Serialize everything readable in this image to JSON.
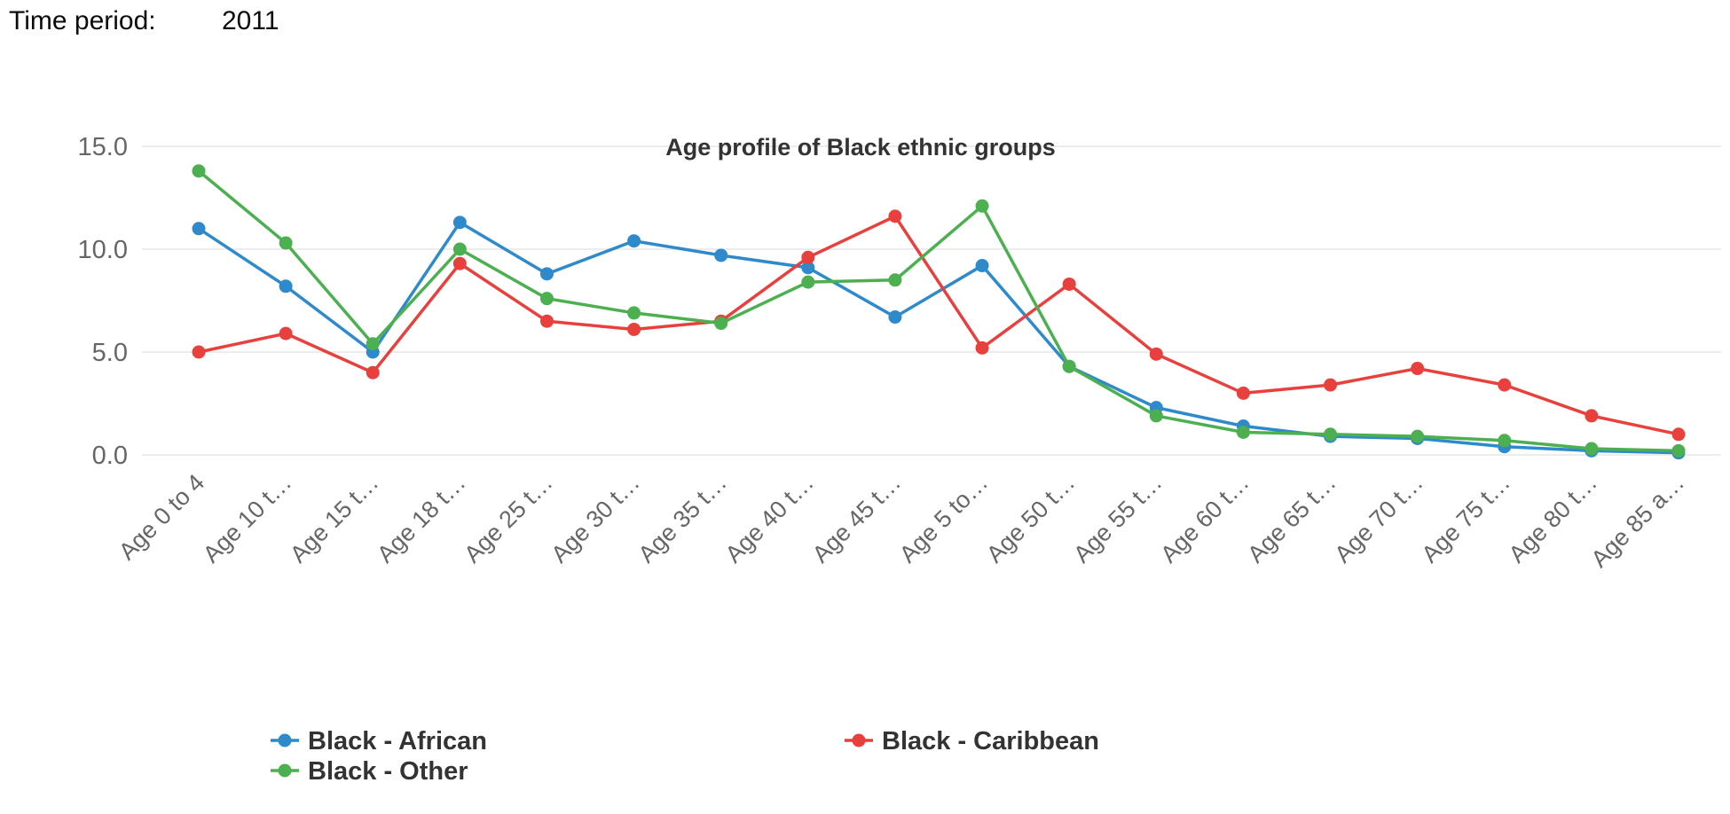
{
  "time_period": {
    "label": "Time period:",
    "value": "2011"
  },
  "colors": {
    "Black - African": "#2e8acb",
    "Black - Caribbean": "#e8413d",
    "Black - Other": "#4caf50",
    "grid": "#e6e6e6",
    "tick_text": "#666666",
    "title_text": "#333333"
  },
  "chart_data": {
    "type": "line",
    "title": "Age profile of Black ethnic groups",
    "xlabel": "",
    "ylabel": "",
    "ylim": [
      0,
      15
    ],
    "yticks": [
      "0.0",
      "5.0",
      "10.0",
      "15.0"
    ],
    "grid": "horizontal",
    "legend_position": "bottom",
    "categories": [
      "Age 0 to 4",
      "Age 10 t…",
      "Age 15 t…",
      "Age 18 t…",
      "Age 25 t…",
      "Age 30 t…",
      "Age 35 t…",
      "Age 40 t…",
      "Age 45 t…",
      "Age 5 to…",
      "Age 50 t…",
      "Age 55 t…",
      "Age 60 t…",
      "Age 65 t…",
      "Age 70 t…",
      "Age 75 t…",
      "Age 80 t…",
      "Age 85 a…"
    ],
    "series": [
      {
        "name": "Black - African",
        "color": "#2e8acb",
        "values": [
          11.0,
          8.2,
          5.0,
          11.3,
          8.8,
          10.4,
          9.7,
          9.1,
          6.7,
          9.2,
          4.3,
          2.3,
          1.4,
          0.9,
          0.8,
          0.4,
          0.2,
          0.1
        ]
      },
      {
        "name": "Black - Caribbean",
        "color": "#e8413d",
        "values": [
          5.0,
          5.9,
          4.0,
          9.3,
          6.5,
          6.1,
          6.5,
          9.6,
          11.6,
          5.2,
          8.3,
          4.9,
          3.0,
          3.4,
          4.2,
          3.4,
          1.9,
          1.0
        ]
      },
      {
        "name": "Black - Other",
        "color": "#4caf50",
        "values": [
          13.8,
          10.3,
          5.4,
          10.0,
          7.6,
          6.9,
          6.4,
          8.4,
          8.5,
          12.1,
          4.3,
          1.9,
          1.1,
          1.0,
          0.9,
          0.7,
          0.3,
          0.2
        ]
      }
    ]
  }
}
